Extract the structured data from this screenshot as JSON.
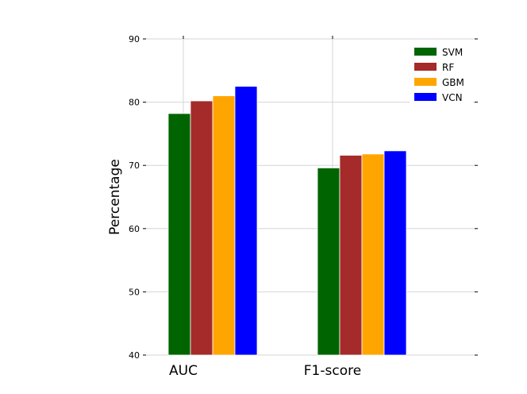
{
  "chart_data": {
    "type": "bar",
    "title": "",
    "xlabel": "",
    "ylabel": "Percentage",
    "categories": [
      "AUC",
      "F1-score"
    ],
    "ylim": [
      40,
      90
    ],
    "yticks": [
      40,
      50,
      60,
      70,
      80,
      90
    ],
    "grid": true,
    "legend_position": "top-right",
    "series": [
      {
        "name": "SVM",
        "color": "#006400",
        "values": [
          78.2,
          69.6
        ]
      },
      {
        "name": "RF",
        "color": "#a52a2a",
        "values": [
          80.2,
          71.6
        ]
      },
      {
        "name": "GBM",
        "color": "#ffa500",
        "values": [
          81.0,
          71.8
        ]
      },
      {
        "name": "VCN",
        "color": "#0000ff",
        "values": [
          82.5,
          72.3
        ]
      }
    ]
  }
}
